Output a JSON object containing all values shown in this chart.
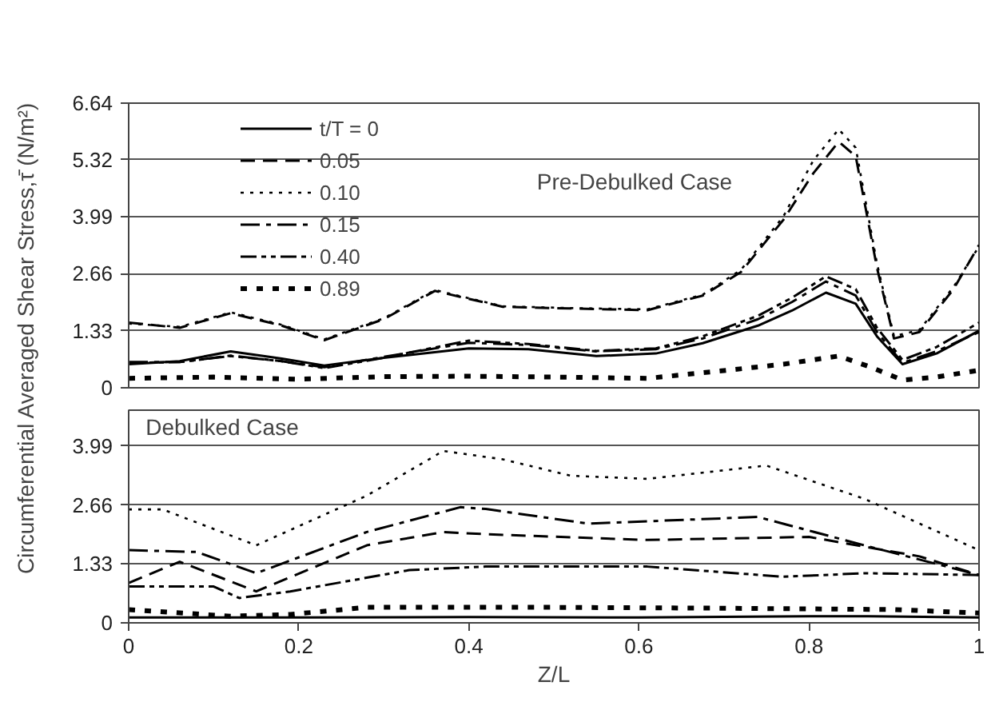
{
  "chart_data": [
    {
      "type": "line",
      "ylabel": "Circumferential Averaged Shear Stress,τ̄  (N/m²)",
      "annotations": [
        "Pre-Debulked Case"
      ],
      "xlim": [
        0,
        1
      ],
      "ylim": [
        0,
        6.64
      ],
      "yticks": [
        0,
        1.33,
        2.66,
        3.99,
        5.32,
        6.64
      ],
      "grid": "y",
      "legend": "top left",
      "tick_labels": "y",
      "series": [
        {
          "name": "t/T = 0",
          "color": "#000000",
          "line_style": "solid",
          "x": [
            0,
            0.06,
            0.12,
            0.18,
            0.23,
            0.3,
            0.4,
            0.47,
            0.55,
            0.62,
            0.675,
            0.74,
            0.78,
            0.82,
            0.855,
            0.88,
            0.91,
            0.95,
            1.0
          ],
          "values": [
            0.55,
            0.62,
            0.85,
            0.68,
            0.52,
            0.7,
            0.92,
            0.9,
            0.74,
            0.8,
            1.04,
            1.45,
            1.8,
            2.22,
            1.96,
            1.2,
            0.55,
            0.8,
            1.33
          ]
        },
        {
          "name": "0.05",
          "color": "#000000",
          "line_style": "dashed",
          "x": [
            0,
            0.06,
            0.12,
            0.18,
            0.23,
            0.3,
            0.36,
            0.44,
            0.52,
            0.61,
            0.675,
            0.72,
            0.77,
            0.805,
            0.835,
            0.855,
            0.88,
            0.9,
            0.93,
            0.97,
            1.0
          ],
          "values": [
            1.52,
            1.4,
            1.74,
            1.45,
            1.11,
            1.6,
            2.26,
            1.89,
            1.85,
            1.81,
            2.15,
            2.7,
            3.92,
            5.0,
            5.74,
            5.4,
            2.8,
            1.15,
            1.3,
            2.3,
            3.33
          ]
        },
        {
          "name": "0.10",
          "color": "#000000",
          "line_style": "dotted",
          "x": [
            0,
            0.06,
            0.12,
            0.18,
            0.23,
            0.3,
            0.36,
            0.44,
            0.52,
            0.61,
            0.675,
            0.72,
            0.77,
            0.805,
            0.835,
            0.855,
            0.88,
            0.9,
            0.93,
            0.97,
            1.0
          ],
          "values": [
            1.5,
            1.42,
            1.76,
            1.47,
            1.13,
            1.62,
            2.28,
            1.9,
            1.86,
            1.83,
            2.17,
            2.75,
            4.0,
            5.3,
            6.03,
            5.6,
            2.9,
            1.2,
            1.35,
            2.35,
            3.3
          ]
        },
        {
          "name": "0.15",
          "color": "#000000",
          "line_style": "dashdot",
          "x": [
            0,
            0.06,
            0.12,
            0.18,
            0.23,
            0.3,
            0.4,
            0.47,
            0.55,
            0.62,
            0.675,
            0.74,
            0.78,
            0.82,
            0.855,
            0.88,
            0.91,
            0.95,
            1.0
          ],
          "values": [
            0.6,
            0.6,
            0.75,
            0.62,
            0.48,
            0.72,
            1.05,
            1.0,
            0.85,
            0.9,
            1.15,
            1.6,
            2.0,
            2.48,
            2.15,
            1.3,
            0.58,
            0.85,
            1.3
          ]
        },
        {
          "name": "0.40",
          "color": "#000000",
          "line_style": "dashdotdot",
          "x": [
            0,
            0.06,
            0.12,
            0.18,
            0.23,
            0.3,
            0.4,
            0.47,
            0.55,
            0.62,
            0.675,
            0.74,
            0.78,
            0.82,
            0.855,
            0.88,
            0.91,
            0.95,
            1.0
          ],
          "values": [
            0.58,
            0.6,
            0.74,
            0.62,
            0.46,
            0.7,
            1.1,
            1.02,
            0.86,
            0.92,
            1.2,
            1.68,
            2.1,
            2.6,
            2.3,
            1.4,
            0.65,
            0.95,
            1.52
          ]
        },
        {
          "name": "0.89",
          "color": "#000000",
          "line_style": "squaredot",
          "x": [
            0,
            0.1,
            0.2,
            0.3,
            0.4,
            0.5,
            0.61,
            0.7,
            0.77,
            0.835,
            0.87,
            0.91,
            0.95,
            1.0
          ],
          "values": [
            0.22,
            0.25,
            0.2,
            0.26,
            0.27,
            0.25,
            0.22,
            0.4,
            0.55,
            0.74,
            0.5,
            0.18,
            0.25,
            0.41
          ]
        }
      ]
    },
    {
      "type": "line",
      "annotations": [
        "Debulked Case"
      ],
      "xlabel": "Z/L",
      "xlim": [
        0,
        1
      ],
      "xticks": [
        0,
        0.2,
        0.4,
        0.6,
        0.8,
        1
      ],
      "ylim": [
        0,
        4.8
      ],
      "yticks": [
        0,
        1.33,
        2.66,
        3.99
      ],
      "grid": "y",
      "series": [
        {
          "color": "#000000",
          "line_style": "solid",
          "x": [
            0,
            0.2,
            0.4,
            0.6,
            0.8,
            0.87,
            1.0
          ],
          "values": [
            0.12,
            0.12,
            0.13,
            0.12,
            0.15,
            0.15,
            0.12
          ]
        },
        {
          "color": "#000000",
          "line_style": "dashed",
          "x": [
            0,
            0.06,
            0.15,
            0.28,
            0.37,
            0.42,
            0.61,
            0.8,
            0.93,
            1.0
          ],
          "values": [
            0.9,
            1.38,
            0.71,
            1.75,
            2.05,
            2.0,
            1.87,
            1.94,
            1.5,
            1.08
          ]
        },
        {
          "color": "#000000",
          "line_style": "dotted",
          "x": [
            0,
            0.04,
            0.15,
            0.28,
            0.37,
            0.44,
            0.52,
            0.61,
            0.75,
            0.865,
            1.0
          ],
          "values": [
            2.56,
            2.56,
            1.75,
            2.87,
            3.88,
            3.69,
            3.32,
            3.25,
            3.55,
            2.8,
            1.64
          ]
        },
        {
          "color": "#000000",
          "line_style": "dashdot",
          "x": [
            0,
            0.08,
            0.15,
            0.28,
            0.39,
            0.42,
            0.54,
            0.74,
            0.865,
            1.0
          ],
          "values": [
            1.64,
            1.6,
            1.12,
            2.05,
            2.61,
            2.57,
            2.24,
            2.39,
            1.75,
            1.08
          ]
        },
        {
          "color": "#000000",
          "line_style": "dashdotdot",
          "x": [
            0,
            0.1,
            0.13,
            0.19,
            0.33,
            0.42,
            0.61,
            0.77,
            0.865,
            1.0
          ],
          "values": [
            0.82,
            0.82,
            0.56,
            0.71,
            1.19,
            1.27,
            1.27,
            1.04,
            1.12,
            1.08
          ]
        },
        {
          "color": "#000000",
          "line_style": "squaredot",
          "x": [
            0,
            0.12,
            0.19,
            0.28,
            0.5,
            0.7,
            0.9,
            1.0
          ],
          "values": [
            0.3,
            0.15,
            0.19,
            0.35,
            0.35,
            0.33,
            0.3,
            0.22
          ]
        }
      ]
    }
  ]
}
